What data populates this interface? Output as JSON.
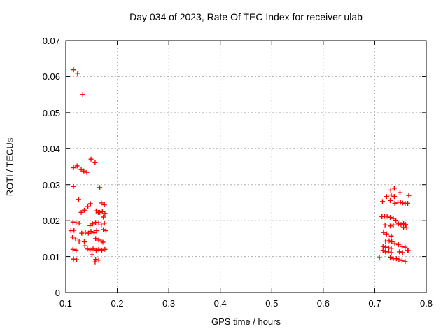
{
  "chart_data": {
    "type": "scatter",
    "title": "Day 034 of 2023, Rate Of TEC Index for receiver ulab",
    "xlabel": "GPS time / hours",
    "ylabel": "ROTI / TECUs",
    "xlim": [
      0.1,
      0.8
    ],
    "ylim": [
      0,
      0.07
    ],
    "x_ticks": [
      {
        "value": 0.1,
        "label": "0.1"
      },
      {
        "value": 0.2,
        "label": "0.2"
      },
      {
        "value": 0.3,
        "label": "0.3"
      },
      {
        "value": 0.4,
        "label": "0.4"
      },
      {
        "value": 0.5,
        "label": "0.5"
      },
      {
        "value": 0.6,
        "label": "0.6"
      },
      {
        "value": 0.7,
        "label": "0.7"
      },
      {
        "value": 0.8,
        "label": "0.8"
      }
    ],
    "y_ticks": [
      {
        "value": 0.0,
        "label": "0"
      },
      {
        "value": 0.01,
        "label": "0.01"
      },
      {
        "value": 0.02,
        "label": "0.02"
      },
      {
        "value": 0.03,
        "label": "0.03"
      },
      {
        "value": 0.04,
        "label": "0.04"
      },
      {
        "value": 0.05,
        "label": "0.05"
      },
      {
        "value": 0.06,
        "label": "0.06"
      },
      {
        "value": 0.07,
        "label": "0.07"
      }
    ],
    "grid": true,
    "legend": false,
    "marker": "plus-cross",
    "marker_color": "#ff0000",
    "grid_color": "#b0b0b0",
    "axis_color": "#000000",
    "background_color": "#ffffff",
    "series": [
      {
        "name": "ROTI",
        "points": [
          [
            0.115,
            0.0619
          ],
          [
            0.123,
            0.0609
          ],
          [
            0.133,
            0.055
          ],
          [
            0.149,
            0.0371
          ],
          [
            0.157,
            0.0361
          ],
          [
            0.122,
            0.0352
          ],
          [
            0.115,
            0.0347
          ],
          [
            0.13,
            0.0342
          ],
          [
            0.135,
            0.0338
          ],
          [
            0.141,
            0.0334
          ],
          [
            0.115,
            0.0295
          ],
          [
            0.166,
            0.0292
          ],
          [
            0.125,
            0.0259
          ],
          [
            0.148,
            0.0247
          ],
          [
            0.169,
            0.0249
          ],
          [
            0.175,
            0.0244
          ],
          [
            0.143,
            0.0239
          ],
          [
            0.136,
            0.0229
          ],
          [
            0.13,
            0.0223
          ],
          [
            0.159,
            0.0227
          ],
          [
            0.163,
            0.0223
          ],
          [
            0.166,
            0.0223
          ],
          [
            0.171,
            0.0225
          ],
          [
            0.176,
            0.022
          ],
          [
            0.173,
            0.021
          ],
          [
            0.114,
            0.0196
          ],
          [
            0.12,
            0.0194
          ],
          [
            0.126,
            0.0193
          ],
          [
            0.158,
            0.0195
          ],
          [
            0.164,
            0.0194
          ],
          [
            0.147,
            0.0186
          ],
          [
            0.152,
            0.0191
          ],
          [
            0.169,
            0.0188
          ],
          [
            0.175,
            0.0193
          ],
          [
            0.11,
            0.0172
          ],
          [
            0.116,
            0.0173
          ],
          [
            0.131,
            0.0165
          ],
          [
            0.138,
            0.0168
          ],
          [
            0.144,
            0.0165
          ],
          [
            0.149,
            0.017
          ],
          [
            0.155,
            0.0166
          ],
          [
            0.16,
            0.0172
          ],
          [
            0.173,
            0.0175
          ],
          [
            0.178,
            0.0172
          ],
          [
            0.113,
            0.0154
          ],
          [
            0.119,
            0.0149
          ],
          [
            0.126,
            0.0143
          ],
          [
            0.158,
            0.015
          ],
          [
            0.164,
            0.0146
          ],
          [
            0.169,
            0.0143
          ],
          [
            0.136,
            0.0141
          ],
          [
            0.137,
            0.013
          ],
          [
            0.172,
            0.014
          ],
          [
            0.114,
            0.012
          ],
          [
            0.12,
            0.0118
          ],
          [
            0.142,
            0.0121
          ],
          [
            0.147,
            0.0119
          ],
          [
            0.153,
            0.0121
          ],
          [
            0.159,
            0.0118
          ],
          [
            0.164,
            0.012
          ],
          [
            0.17,
            0.0118
          ],
          [
            0.176,
            0.012
          ],
          [
            0.151,
            0.0105
          ],
          [
            0.115,
            0.0093
          ],
          [
            0.121,
            0.0091
          ],
          [
            0.158,
            0.0092
          ],
          [
            0.164,
            0.009
          ],
          [
            0.157,
            0.0085
          ],
          [
            0.731,
            0.0285
          ],
          [
            0.738,
            0.029
          ],
          [
            0.749,
            0.0278
          ],
          [
            0.766,
            0.027
          ],
          [
            0.723,
            0.0267
          ],
          [
            0.732,
            0.0271
          ],
          [
            0.738,
            0.0267
          ],
          [
            0.715,
            0.0253
          ],
          [
            0.73,
            0.0256
          ],
          [
            0.739,
            0.0248
          ],
          [
            0.745,
            0.0251
          ],
          [
            0.75,
            0.0251
          ],
          [
            0.754,
            0.0249
          ],
          [
            0.759,
            0.0248
          ],
          [
            0.764,
            0.0248
          ],
          [
            0.714,
            0.0211
          ],
          [
            0.719,
            0.0212
          ],
          [
            0.724,
            0.0212
          ],
          [
            0.73,
            0.0209
          ],
          [
            0.736,
            0.0206
          ],
          [
            0.741,
            0.0201
          ],
          [
            0.72,
            0.0188
          ],
          [
            0.73,
            0.0185
          ],
          [
            0.736,
            0.0188
          ],
          [
            0.746,
            0.0191
          ],
          [
            0.751,
            0.0189
          ],
          [
            0.756,
            0.0192
          ],
          [
            0.76,
            0.0189
          ],
          [
            0.756,
            0.0181
          ],
          [
            0.762,
            0.018
          ],
          [
            0.717,
            0.0167
          ],
          [
            0.723,
            0.0163
          ],
          [
            0.732,
            0.0157
          ],
          [
            0.721,
            0.0143
          ],
          [
            0.728,
            0.0144
          ],
          [
            0.733,
            0.0141
          ],
          [
            0.739,
            0.0136
          ],
          [
            0.746,
            0.0133
          ],
          [
            0.716,
            0.0128
          ],
          [
            0.721,
            0.0126
          ],
          [
            0.727,
            0.0124
          ],
          [
            0.732,
            0.0123
          ],
          [
            0.753,
            0.0128
          ],
          [
            0.759,
            0.0126
          ],
          [
            0.716,
            0.0117
          ],
          [
            0.721,
            0.0113
          ],
          [
            0.727,
            0.0115
          ],
          [
            0.732,
            0.0111
          ],
          [
            0.748,
            0.0113
          ],
          [
            0.754,
            0.0111
          ],
          [
            0.764,
            0.0117
          ],
          [
            0.766,
            0.0116
          ],
          [
            0.709,
            0.0097
          ],
          [
            0.73,
            0.0098
          ],
          [
            0.736,
            0.0094
          ],
          [
            0.742,
            0.0094
          ],
          [
            0.747,
            0.0091
          ],
          [
            0.753,
            0.0089
          ],
          [
            0.759,
            0.0086
          ]
        ]
      }
    ]
  }
}
